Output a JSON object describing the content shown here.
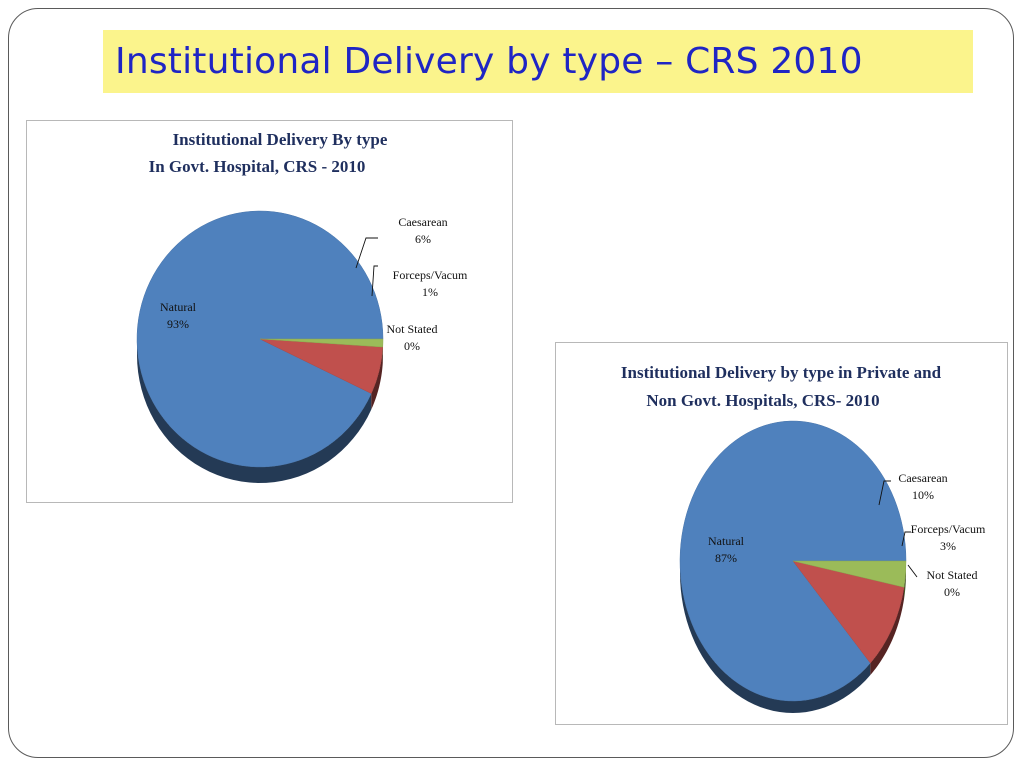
{
  "slide": {
    "title": "Institutional Delivery by type – CRS 2010"
  },
  "chart_data": [
    {
      "type": "pie",
      "title": [
        "Institutional Delivery By type",
        "In  Govt. Hospital, CRS - 2010"
      ],
      "slices": [
        {
          "name": "Natural",
          "value": 93,
          "label": "93%",
          "color": "#4f81bd"
        },
        {
          "name": "Caesarean",
          "value": 6,
          "label": "6%",
          "color": "#c0504d"
        },
        {
          "name": "Forceps/Vacum",
          "value": 1,
          "label": "1%",
          "color": "#9bbb59"
        },
        {
          "name": "Not Stated",
          "value": 0,
          "label": "0%",
          "color": "#8064a2"
        }
      ]
    },
    {
      "type": "pie",
      "title": [
        "Institutional Delivery by type in Private and",
        "Non Govt. Hospitals, CRS- 2010"
      ],
      "slices": [
        {
          "name": "Natural",
          "value": 87,
          "label": "87%",
          "color": "#4f81bd"
        },
        {
          "name": "Caesarean",
          "value": 10,
          "label": "10%",
          "color": "#c0504d"
        },
        {
          "name": "Forceps/Vacum",
          "value": 3,
          "label": "3%",
          "color": "#9bbb59"
        },
        {
          "name": "Not Stated",
          "value": 0,
          "label": "0%",
          "color": "#8064a2"
        }
      ]
    }
  ]
}
